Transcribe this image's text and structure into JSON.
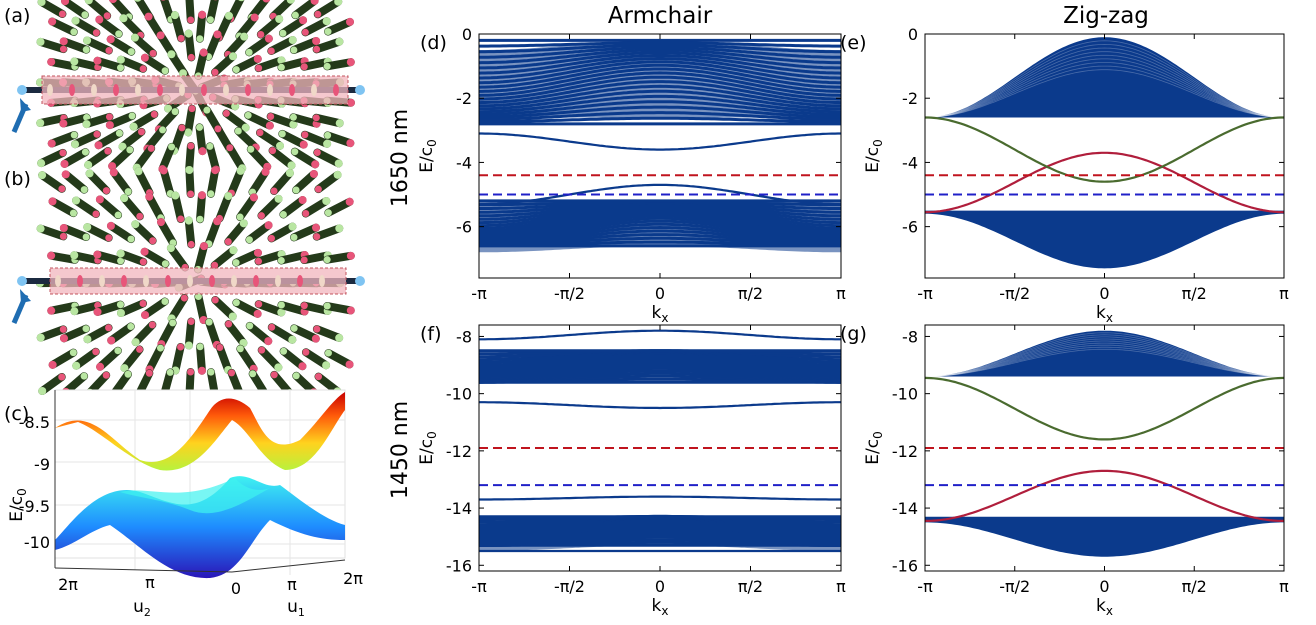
{
  "panel_labels": {
    "a": "(a)",
    "b": "(b)",
    "c": "(c)",
    "d": "(d)",
    "e": "(e)",
    "f": "(f)",
    "g": "(g)"
  },
  "column_titles": {
    "left": "Armchair",
    "right": "Zig-zag"
  },
  "row_titles": {
    "top": "1650 nm",
    "bottom": "1450 nm"
  },
  "colors": {
    "bulk": "#0b3a8c",
    "edge_red": "#b01e3c",
    "edge_green": "#4a6b2f",
    "dash_red": "#c0141e",
    "dash_blue": "#2020c8",
    "rod_pink": "#e8557a",
    "rod_green": "#b9e6a2",
    "rod_dark": "#243a1a",
    "highlight": "#f2b6bd",
    "arrow": "#1f6db2"
  },
  "chart_data": [
    {
      "panel": "(c)",
      "type": "surface",
      "zlabel": "E/c",
      "zlabel_sub": "0",
      "z_ticks": [
        "-8.5",
        "-9",
        "-9.5",
        "-10"
      ],
      "u2_ticks": [
        "2π",
        "π",
        "0"
      ],
      "u2_label": "u",
      "u2_sub": "2",
      "u1_ticks": [
        "π",
        "2π"
      ],
      "u1_label": "u",
      "u1_sub": "1",
      "upper_band_range": [
        -9.0,
        -8.1
      ],
      "lower_band_range": [
        -10.2,
        -9.3
      ]
    },
    {
      "panel": "(d)",
      "type": "line",
      "xlabel": "k",
      "xlabel_sub": "x",
      "ylabel": "E/c",
      "ylabel_sub": "0",
      "xticks": [
        "-π",
        "-π/2",
        "0",
        "π/2",
        "π"
      ],
      "yticks": [
        "0",
        "-2",
        "-4",
        "-6"
      ],
      "xlim": [
        -3.1416,
        3.1416
      ],
      "ylim": [
        -7.6,
        0
      ],
      "bulk_upper": [
        -2.8,
        -0.2
      ],
      "bulk_lower": [
        -6.6,
        -5.2
      ],
      "edge_states": [
        {
          "center": -3.6,
          "edge": -3.1,
          "color": "bulk"
        },
        {
          "center": -4.7,
          "edge": -5.3,
          "color": "bulk"
        }
      ],
      "dashed": [
        {
          "y": -4.4,
          "color": "dash_red"
        },
        {
          "y": -5.0,
          "color": "dash_blue"
        }
      ]
    },
    {
      "panel": "(e)",
      "type": "line",
      "xlabel": "k",
      "xlabel_sub": "x",
      "ylabel": "E/c",
      "ylabel_sub": "0",
      "xticks": [
        "-π",
        "-π/2",
        "0",
        "π/2",
        "π"
      ],
      "yticks": [
        "0",
        "-2",
        "-4",
        "-6"
      ],
      "xlim": [
        -3.1416,
        3.1416
      ],
      "ylim": [
        -7.6,
        0
      ],
      "bulk_upper": {
        "center": -0.1,
        "edge": -2.6,
        "bottom": -2.6
      },
      "bulk_lower": {
        "center": -7.3,
        "edge": -5.6,
        "top": -5.5
      },
      "edge_states": [
        {
          "center": -3.7,
          "edge": -5.55,
          "color": "edge_red"
        },
        {
          "center": -4.6,
          "edge": -2.6,
          "color": "edge_green"
        }
      ],
      "dashed": [
        {
          "y": -4.4,
          "color": "dash_red"
        },
        {
          "y": -5.0,
          "color": "dash_blue"
        }
      ]
    },
    {
      "panel": "(f)",
      "type": "line",
      "xlabel": "k",
      "xlabel_sub": "x",
      "ylabel": "E/c",
      "ylabel_sub": "0",
      "xticks": [
        "-π",
        "-π/2",
        "0",
        "π/2",
        "π"
      ],
      "yticks": [
        "-8",
        "-10",
        "-12",
        "-14",
        "-16"
      ],
      "xlim": [
        -3.1416,
        3.1416
      ],
      "ylim": [
        -16.2,
        -7.6
      ],
      "bulk_upper": [
        -9.6,
        -8.5
      ],
      "bulk_lower": [
        -15.3,
        -14.3
      ],
      "edge_states": [
        {
          "center": -7.8,
          "edge": -8.1,
          "color": "bulk"
        },
        {
          "center": -10.5,
          "edge": -10.3,
          "color": "bulk"
        },
        {
          "center": -13.6,
          "edge": -13.7,
          "color": "bulk"
        },
        {
          "center": -15.5,
          "edge": -15.5,
          "color": "bulk"
        }
      ],
      "dashed": [
        {
          "y": -11.9,
          "color": "dash_red"
        },
        {
          "y": -13.2,
          "color": "dash_blue"
        }
      ]
    },
    {
      "panel": "(g)",
      "type": "line",
      "xlabel": "k",
      "xlabel_sub": "x",
      "ylabel": "E/c",
      "ylabel_sub": "0",
      "xticks": [
        "-π",
        "-π/2",
        "0",
        "π/2",
        "π"
      ],
      "yticks": [
        "-8",
        "-10",
        "-12",
        "-14",
        "-16"
      ],
      "xlim": [
        -3.1416,
        3.1416
      ],
      "ylim": [
        -16.2,
        -7.6
      ],
      "bulk_upper": {
        "center": -7.8,
        "edge": -9.4,
        "bottom": -9.4
      },
      "bulk_lower": {
        "center": -15.7,
        "edge": -14.5,
        "top": -14.3
      },
      "edge_states": [
        {
          "center": -12.7,
          "edge": -14.45,
          "color": "edge_red"
        },
        {
          "center": -11.6,
          "edge": -9.45,
          "color": "edge_green"
        }
      ],
      "dashed": [
        {
          "y": -11.9,
          "color": "dash_red"
        },
        {
          "y": -13.2,
          "color": "dash_blue"
        }
      ]
    }
  ]
}
